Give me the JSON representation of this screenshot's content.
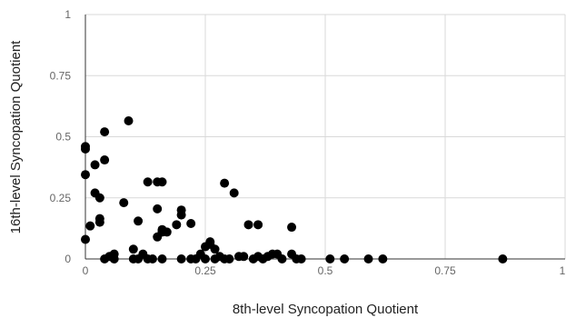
{
  "chart_data": {
    "type": "scatter",
    "title": "",
    "xlabel": "8th-level Syncopation Quotient",
    "ylabel": "16th-level Syncopation Quotient",
    "xlim": [
      0,
      1
    ],
    "ylim": [
      0,
      1
    ],
    "x_ticks": [
      "0",
      "0.25",
      "0.5",
      "0.75",
      "1"
    ],
    "y_ticks": [
      "0",
      "0.25",
      "0.5",
      "0.75",
      "1"
    ],
    "grid": true,
    "legend": "none",
    "marker_color": "#000000",
    "grid_color": "#d9d9d9",
    "axis_color": "#333333",
    "series": [
      {
        "points": [
          [
            0.0,
            0.08
          ],
          [
            0.0,
            0.345
          ],
          [
            0.0,
            0.45
          ],
          [
            0.0,
            0.46
          ],
          [
            0.01,
            0.135
          ],
          [
            0.02,
            0.385
          ],
          [
            0.02,
            0.27
          ],
          [
            0.03,
            0.15
          ],
          [
            0.03,
            0.165
          ],
          [
            0.03,
            0.25
          ],
          [
            0.04,
            0.52
          ],
          [
            0.04,
            0.405
          ],
          [
            0.04,
            0.0
          ],
          [
            0.05,
            0.01
          ],
          [
            0.06,
            0.02
          ],
          [
            0.06,
            0.0
          ],
          [
            0.08,
            0.23
          ],
          [
            0.09,
            0.565
          ],
          [
            0.1,
            0.0
          ],
          [
            0.1,
            0.04
          ],
          [
            0.11,
            0.155
          ],
          [
            0.11,
            0.0
          ],
          [
            0.12,
            0.02
          ],
          [
            0.13,
            0.315
          ],
          [
            0.13,
            0.0
          ],
          [
            0.14,
            0.0
          ],
          [
            0.15,
            0.315
          ],
          [
            0.15,
            0.205
          ],
          [
            0.15,
            0.09
          ],
          [
            0.16,
            0.11
          ],
          [
            0.16,
            0.12
          ],
          [
            0.16,
            0.315
          ],
          [
            0.16,
            0.0
          ],
          [
            0.17,
            0.11
          ],
          [
            0.19,
            0.14
          ],
          [
            0.2,
            0.2
          ],
          [
            0.2,
            0.18
          ],
          [
            0.2,
            0.0
          ],
          [
            0.22,
            0.145
          ],
          [
            0.22,
            0.0
          ],
          [
            0.23,
            0.0
          ],
          [
            0.24,
            0.02
          ],
          [
            0.25,
            0.05
          ],
          [
            0.25,
            0.0
          ],
          [
            0.26,
            0.06
          ],
          [
            0.26,
            0.07
          ],
          [
            0.27,
            0.04
          ],
          [
            0.27,
            0.0
          ],
          [
            0.28,
            0.01
          ],
          [
            0.29,
            0.31
          ],
          [
            0.29,
            0.0
          ],
          [
            0.3,
            0.0
          ],
          [
            0.31,
            0.27
          ],
          [
            0.32,
            0.01
          ],
          [
            0.33,
            0.01
          ],
          [
            0.34,
            0.14
          ],
          [
            0.35,
            0.0
          ],
          [
            0.36,
            0.14
          ],
          [
            0.36,
            0.01
          ],
          [
            0.37,
            0.0
          ],
          [
            0.38,
            0.01
          ],
          [
            0.39,
            0.02
          ],
          [
            0.4,
            0.02
          ],
          [
            0.41,
            0.0
          ],
          [
            0.43,
            0.13
          ],
          [
            0.43,
            0.02
          ],
          [
            0.44,
            0.0
          ],
          [
            0.45,
            0.0
          ],
          [
            0.51,
            0.0
          ],
          [
            0.54,
            0.0
          ],
          [
            0.59,
            0.0
          ],
          [
            0.62,
            0.0
          ],
          [
            0.87,
            0.0
          ]
        ]
      }
    ]
  }
}
